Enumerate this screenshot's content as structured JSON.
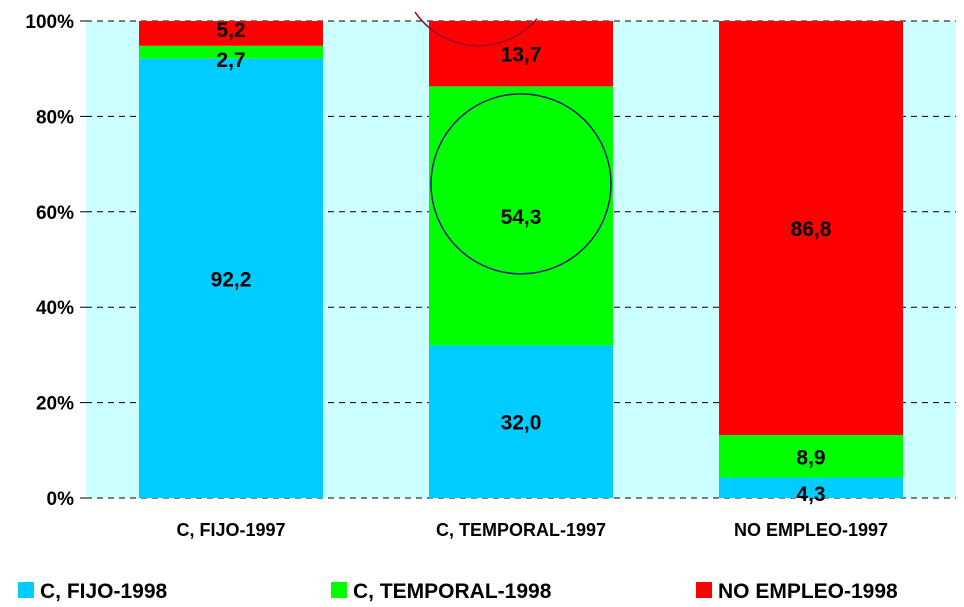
{
  "chart_data": {
    "type": "bar",
    "stacked": true,
    "normalized_percent": true,
    "categories": [
      "C, FIJO-1997",
      "C, TEMPORAL-1997",
      "NO EMPLEO-1997"
    ],
    "series": [
      {
        "name": "C, FIJO-1998",
        "color": "#00ccff",
        "values": [
          92.2,
          32.0,
          4.3
        ],
        "labels": [
          "92,2",
          "32,0",
          "4,3"
        ]
      },
      {
        "name": "C, TEMPORAL-1998",
        "color": "#00ff00",
        "values": [
          2.7,
          54.3,
          8.9
        ],
        "labels": [
          "2,7",
          "54,3",
          "8,9"
        ]
      },
      {
        "name": "NO EMPLEO-1998",
        "color": "#ff0000",
        "values": [
          5.2,
          13.7,
          86.8
        ],
        "labels": [
          "5,2",
          "13,7",
          "86,8"
        ]
      }
    ],
    "yticks": [
      "0%",
      "20%",
      "40%",
      "60%",
      "80%",
      "100%"
    ],
    "ylim": [
      0,
      100
    ],
    "grid": "horizontal-dashed",
    "legend_position": "bottom",
    "plot_background": "#ccffff",
    "highlight_circle": {
      "category": "C, TEMPORAL-1997",
      "series": "C, TEMPORAL-1998",
      "color": "#1a1a80"
    },
    "partial_circle_color": "#990033"
  }
}
